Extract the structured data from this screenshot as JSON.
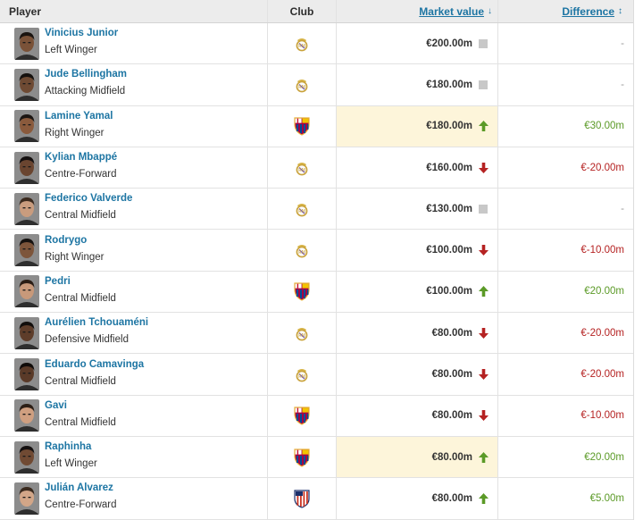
{
  "header": {
    "player": "Player",
    "club": "Club",
    "market_value": "Market value",
    "market_value_sort": "↓",
    "difference": "Difference",
    "difference_sort": "↕"
  },
  "colors": {
    "link": "#1d75a3",
    "up": "#5b9a27",
    "down": "#b52222",
    "neutral": "#c8c8c8",
    "highlight": "#fdf5da"
  },
  "rows": [
    {
      "name": "Vinicius Junior",
      "position": "Left Winger",
      "club": "real-madrid",
      "value": "€200.00m",
      "trend": "neutral",
      "diff": "-",
      "highlight": false,
      "skin": "#7a5238",
      "hair": "#1a1410"
    },
    {
      "name": "Jude Bellingham",
      "position": "Attacking Midfield",
      "club": "real-madrid",
      "value": "€180.00m",
      "trend": "neutral",
      "diff": "-",
      "highlight": false,
      "skin": "#6e4a33",
      "hair": "#15110e"
    },
    {
      "name": "Lamine Yamal",
      "position": "Right Winger",
      "club": "barcelona",
      "value": "€180.00m",
      "trend": "up",
      "diff": "€30.00m",
      "highlight": true,
      "skin": "#8a5a3c",
      "hair": "#1b1512"
    },
    {
      "name": "Kylian Mbappé",
      "position": "Centre-Forward",
      "club": "real-madrid",
      "value": "€160.00m",
      "trend": "down",
      "diff": "€-20.00m",
      "highlight": false,
      "skin": "#6a4530",
      "hair": "#141010"
    },
    {
      "name": "Federico Valverde",
      "position": "Central Midfield",
      "club": "real-madrid",
      "value": "€130.00m",
      "trend": "neutral",
      "diff": "-",
      "highlight": false,
      "skin": "#c99c7e",
      "hair": "#3b2a1e"
    },
    {
      "name": "Rodrygo",
      "position": "Right Winger",
      "club": "real-madrid",
      "value": "€100.00m",
      "trend": "down",
      "diff": "€-10.00m",
      "highlight": false,
      "skin": "#7d553b",
      "hair": "#161210"
    },
    {
      "name": "Pedri",
      "position": "Central Midfield",
      "club": "barcelona",
      "value": "€100.00m",
      "trend": "up",
      "diff": "€20.00m",
      "highlight": false,
      "skin": "#c8997a",
      "hair": "#2a1d15"
    },
    {
      "name": "Aurélien Tchouaméni",
      "position": "Defensive Midfield",
      "club": "real-madrid",
      "value": "€80.00m",
      "trend": "down",
      "diff": "€-20.00m",
      "highlight": false,
      "skin": "#5e3d2a",
      "hair": "#120e0c"
    },
    {
      "name": "Eduardo Camavinga",
      "position": "Central Midfield",
      "club": "real-madrid",
      "value": "€80.00m",
      "trend": "down",
      "diff": "€-20.00m",
      "highlight": false,
      "skin": "#5a3a28",
      "hair": "#100c0a"
    },
    {
      "name": "Gavi",
      "position": "Central Midfield",
      "club": "barcelona",
      "value": "€80.00m",
      "trend": "down",
      "diff": "€-10.00m",
      "highlight": false,
      "skin": "#cf9f80",
      "hair": "#2c1f16"
    },
    {
      "name": "Raphinha",
      "position": "Left Winger",
      "club": "barcelona",
      "value": "€80.00m",
      "trend": "up",
      "diff": "€20.00m",
      "highlight": true,
      "skin": "#704a33",
      "hair": "#141010"
    },
    {
      "name": "Julián Alvarez",
      "position": "Centre-Forward",
      "club": "atletico-madrid",
      "value": "€80.00m",
      "trend": "up",
      "diff": "€5.00m",
      "highlight": false,
      "skin": "#d2a688",
      "hair": "#3a2a1e"
    }
  ]
}
